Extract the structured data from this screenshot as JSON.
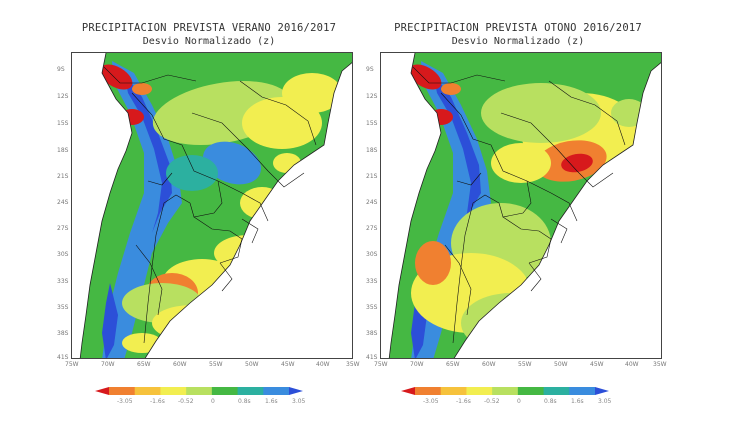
{
  "panels": [
    {
      "title": "PRECIPITACION PREVISTA VERANO 2016/2017",
      "subtitle": "Desvio Normalizado (z)",
      "lat_ticks": [
        "9S",
        "12S",
        "15S",
        "18S",
        "21S",
        "24S",
        "27S",
        "30S",
        "33S",
        "35S",
        "38S",
        "41S"
      ],
      "lon_ticks": [
        "75W",
        "70W",
        "65W",
        "60W",
        "55W",
        "50W",
        "45W",
        "40W",
        "35W"
      ],
      "anomaly": "mixed"
    },
    {
      "title": "PRECIPITACION PREVISTA OTONO 2016/2017",
      "subtitle": "Desvio Normalizado (z)",
      "lat_ticks": [
        "9S",
        "12S",
        "15S",
        "18S",
        "21S",
        "24S",
        "27S",
        "30S",
        "33S",
        "35S",
        "38S",
        "41S"
      ],
      "lon_ticks": [
        "75W",
        "70W",
        "65W",
        "60W",
        "55W",
        "50W",
        "45W",
        "40W",
        "35W"
      ],
      "anomaly": "dry-center"
    }
  ],
  "colorbar": {
    "labels": [
      "-3.05",
      "-1.6s",
      "-0.52",
      "0",
      "0.8s",
      "1.6s",
      "3.05"
    ],
    "colors": [
      "#d7191c",
      "#f08030",
      "#f6c23c",
      "#f2ee50",
      "#b8e060",
      "#45b843",
      "#2cb0a0",
      "#3a8cde",
      "#2c4fd8"
    ]
  }
}
